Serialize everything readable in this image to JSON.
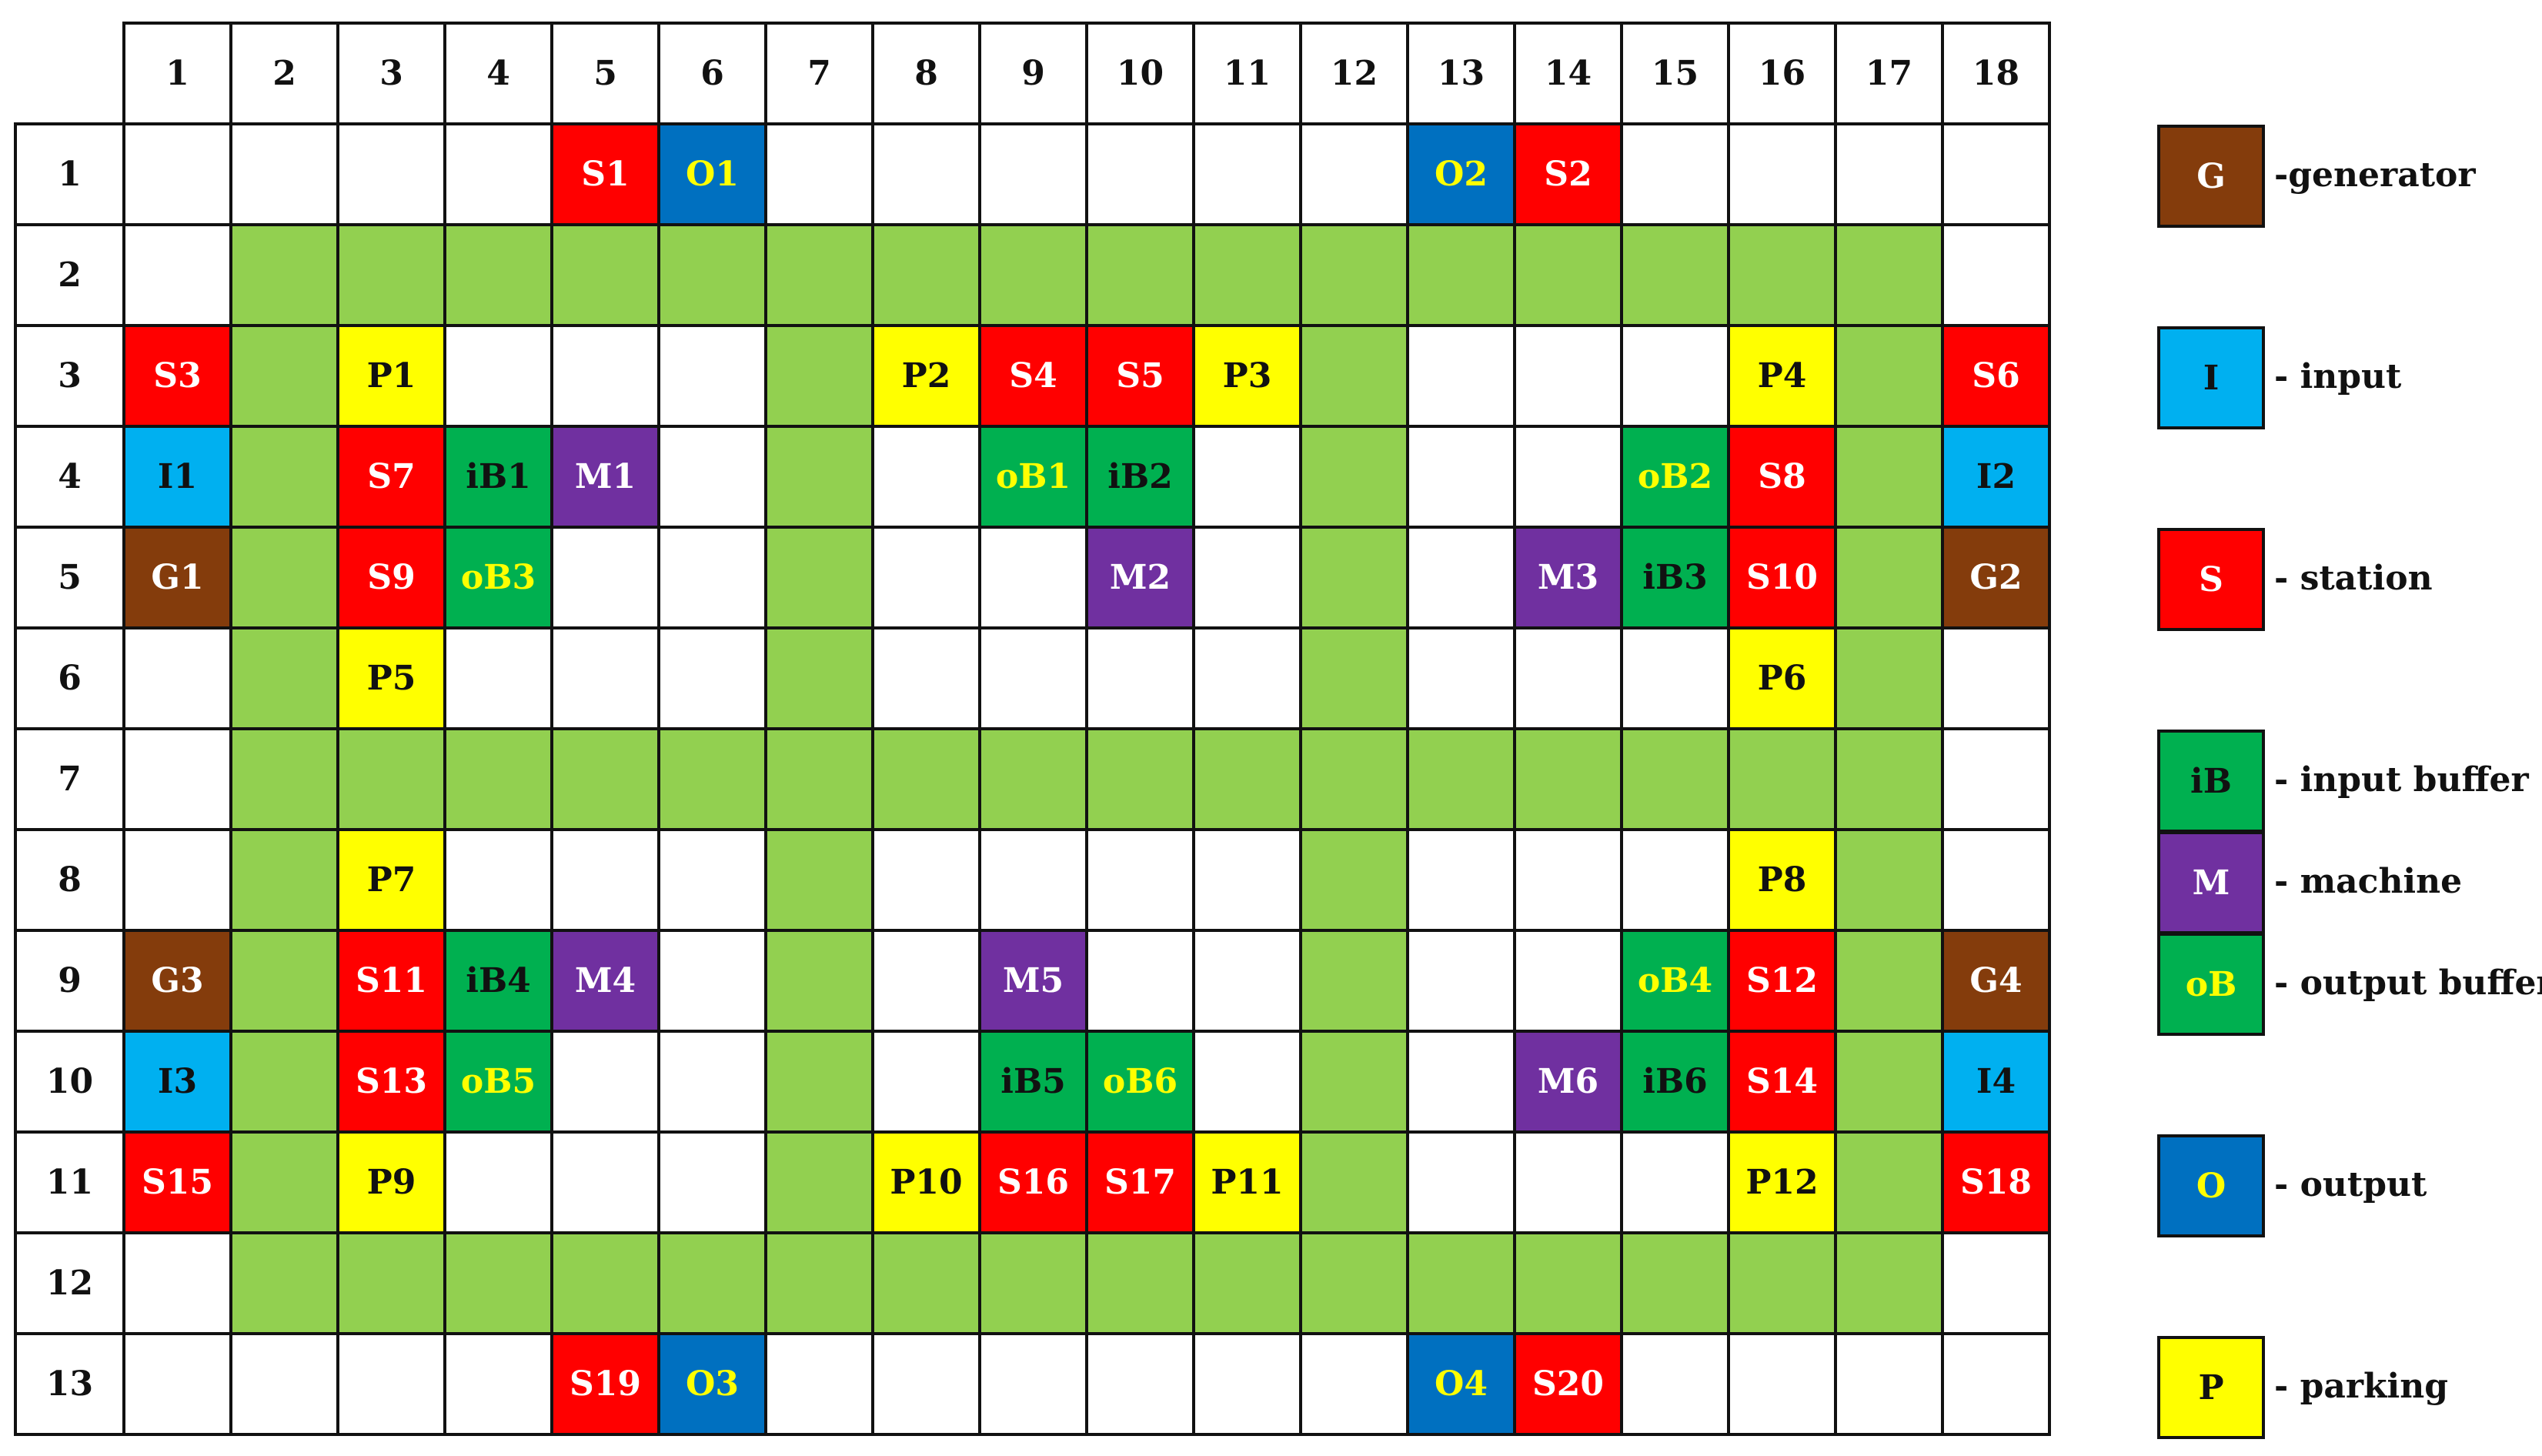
{
  "colors": {
    "grid_border": "#111111",
    "path": "#92d050",
    "station": "#ff0000",
    "output": "#0070c0",
    "input": "#00b0f0",
    "generator": "#843c0c",
    "buffer": "#00b050",
    "machine": "#7030a0",
    "parking": "#ffff00",
    "empty": "#ffffff",
    "text_white": "#ffffff",
    "text_black": "#111111",
    "text_yellow": "#ffff00"
  },
  "grid": {
    "column_headers": [
      "1",
      "2",
      "3",
      "4",
      "5",
      "6",
      "7",
      "8",
      "9",
      "10",
      "11",
      "12",
      "13",
      "14",
      "15",
      "16",
      "17",
      "18"
    ],
    "row_headers": [
      "1",
      "2",
      "3",
      "4",
      "5",
      "6",
      "7",
      "8",
      "9",
      "10",
      "11",
      "12",
      "13"
    ],
    "path_rows": [
      2,
      7,
      12
    ],
    "path_row_extent": [
      2,
      17
    ],
    "path_columns": [
      2,
      7,
      12,
      17
    ],
    "path_column_extent": [
      2,
      12
    ],
    "cells": [
      {
        "row": 1,
        "col": 5,
        "label": "S1",
        "type": "station"
      },
      {
        "row": 1,
        "col": 6,
        "label": "O1",
        "type": "output"
      },
      {
        "row": 1,
        "col": 13,
        "label": "O2",
        "type": "output"
      },
      {
        "row": 1,
        "col": 14,
        "label": "S2",
        "type": "station"
      },
      {
        "row": 3,
        "col": 1,
        "label": "S3",
        "type": "station"
      },
      {
        "row": 3,
        "col": 3,
        "label": "P1",
        "type": "parking"
      },
      {
        "row": 3,
        "col": 8,
        "label": "P2",
        "type": "parking"
      },
      {
        "row": 3,
        "col": 9,
        "label": "S4",
        "type": "station"
      },
      {
        "row": 3,
        "col": 10,
        "label": "S5",
        "type": "station"
      },
      {
        "row": 3,
        "col": 11,
        "label": "P3",
        "type": "parking"
      },
      {
        "row": 3,
        "col": 16,
        "label": "P4",
        "type": "parking"
      },
      {
        "row": 3,
        "col": 18,
        "label": "S6",
        "type": "station"
      },
      {
        "row": 4,
        "col": 1,
        "label": "I1",
        "type": "input"
      },
      {
        "row": 4,
        "col": 3,
        "label": "S7",
        "type": "station"
      },
      {
        "row": 4,
        "col": 4,
        "label": "iB1",
        "type": "input_buffer"
      },
      {
        "row": 4,
        "col": 5,
        "label": "M1",
        "type": "machine"
      },
      {
        "row": 4,
        "col": 9,
        "label": "oB1",
        "type": "output_buffer"
      },
      {
        "row": 4,
        "col": 10,
        "label": "iB2",
        "type": "input_buffer"
      },
      {
        "row": 4,
        "col": 15,
        "label": "oB2",
        "type": "output_buffer"
      },
      {
        "row": 4,
        "col": 16,
        "label": "S8",
        "type": "station"
      },
      {
        "row": 4,
        "col": 18,
        "label": "I2",
        "type": "input"
      },
      {
        "row": 5,
        "col": 1,
        "label": "G1",
        "type": "generator"
      },
      {
        "row": 5,
        "col": 3,
        "label": "S9",
        "type": "station"
      },
      {
        "row": 5,
        "col": 4,
        "label": "oB3",
        "type": "output_buffer"
      },
      {
        "row": 5,
        "col": 10,
        "label": "M2",
        "type": "machine"
      },
      {
        "row": 5,
        "col": 14,
        "label": "M3",
        "type": "machine"
      },
      {
        "row": 5,
        "col": 15,
        "label": "iB3",
        "type": "input_buffer"
      },
      {
        "row": 5,
        "col": 16,
        "label": "S10",
        "type": "station"
      },
      {
        "row": 5,
        "col": 18,
        "label": "G2",
        "type": "generator"
      },
      {
        "row": 6,
        "col": 3,
        "label": "P5",
        "type": "parking"
      },
      {
        "row": 6,
        "col": 16,
        "label": "P6",
        "type": "parking"
      },
      {
        "row": 8,
        "col": 3,
        "label": "P7",
        "type": "parking"
      },
      {
        "row": 8,
        "col": 16,
        "label": "P8",
        "type": "parking"
      },
      {
        "row": 9,
        "col": 1,
        "label": "G3",
        "type": "generator"
      },
      {
        "row": 9,
        "col": 3,
        "label": "S11",
        "type": "station"
      },
      {
        "row": 9,
        "col": 4,
        "label": "iB4",
        "type": "input_buffer"
      },
      {
        "row": 9,
        "col": 5,
        "label": "M4",
        "type": "machine"
      },
      {
        "row": 9,
        "col": 9,
        "label": "M5",
        "type": "machine"
      },
      {
        "row": 9,
        "col": 15,
        "label": "oB4",
        "type": "output_buffer"
      },
      {
        "row": 9,
        "col": 16,
        "label": "S12",
        "type": "station"
      },
      {
        "row": 9,
        "col": 18,
        "label": "G4",
        "type": "generator"
      },
      {
        "row": 10,
        "col": 1,
        "label": "I3",
        "type": "input"
      },
      {
        "row": 10,
        "col": 3,
        "label": "S13",
        "type": "station"
      },
      {
        "row": 10,
        "col": 4,
        "label": "oB5",
        "type": "output_buffer"
      },
      {
        "row": 10,
        "col": 9,
        "label": "iB5",
        "type": "input_buffer"
      },
      {
        "row": 10,
        "col": 10,
        "label": "oB6",
        "type": "output_buffer"
      },
      {
        "row": 10,
        "col": 14,
        "label": "M6",
        "type": "machine"
      },
      {
        "row": 10,
        "col": 15,
        "label": "iB6",
        "type": "input_buffer"
      },
      {
        "row": 10,
        "col": 16,
        "label": "S14",
        "type": "station"
      },
      {
        "row": 10,
        "col": 18,
        "label": "I4",
        "type": "input"
      },
      {
        "row": 11,
        "col": 1,
        "label": "S15",
        "type": "station"
      },
      {
        "row": 11,
        "col": 3,
        "label": "P9",
        "type": "parking"
      },
      {
        "row": 11,
        "col": 8,
        "label": "P10",
        "type": "parking"
      },
      {
        "row": 11,
        "col": 9,
        "label": "S16",
        "type": "station"
      },
      {
        "row": 11,
        "col": 10,
        "label": "S17",
        "type": "station"
      },
      {
        "row": 11,
        "col": 11,
        "label": "P11",
        "type": "parking"
      },
      {
        "row": 11,
        "col": 16,
        "label": "P12",
        "type": "parking"
      },
      {
        "row": 11,
        "col": 18,
        "label": "S18",
        "type": "station"
      },
      {
        "row": 13,
        "col": 5,
        "label": "S19",
        "type": "station"
      },
      {
        "row": 13,
        "col": 6,
        "label": "O3",
        "type": "output"
      },
      {
        "row": 13,
        "col": 13,
        "label": "O4",
        "type": "output"
      },
      {
        "row": 13,
        "col": 14,
        "label": "S20",
        "type": "station"
      }
    ]
  },
  "types": {
    "station": {
      "fill": "#ff0000",
      "text": "#ffffff"
    },
    "output": {
      "fill": "#0070c0",
      "text": "#ffff00"
    },
    "input": {
      "fill": "#00b0f0",
      "text": "#111111"
    },
    "generator": {
      "fill": "#843c0c",
      "text": "#ffffff"
    },
    "input_buffer": {
      "fill": "#00b050",
      "text": "#111111"
    },
    "output_buffer": {
      "fill": "#00b050",
      "text": "#ffff00"
    },
    "machine": {
      "fill": "#7030a0",
      "text": "#ffffff"
    },
    "parking": {
      "fill": "#ffff00",
      "text": "#111111"
    }
  },
  "legend": [
    {
      "symbol": "G",
      "label": "-generator",
      "type": "generator"
    },
    {
      "symbol": "I",
      "label": "- input",
      "type": "input"
    },
    {
      "symbol": "S",
      "label": "- station",
      "type": "station"
    },
    {
      "symbol": "iB",
      "label": "- input buffer",
      "type": "input_buffer"
    },
    {
      "symbol": "M",
      "label": "- machine",
      "type": "machine"
    },
    {
      "symbol": "oB",
      "label": "- output buffer",
      "type": "output_buffer"
    },
    {
      "symbol": "O",
      "label": "- output",
      "type": "output"
    },
    {
      "symbol": "P",
      "label": "- parking",
      "type": "parking"
    }
  ]
}
